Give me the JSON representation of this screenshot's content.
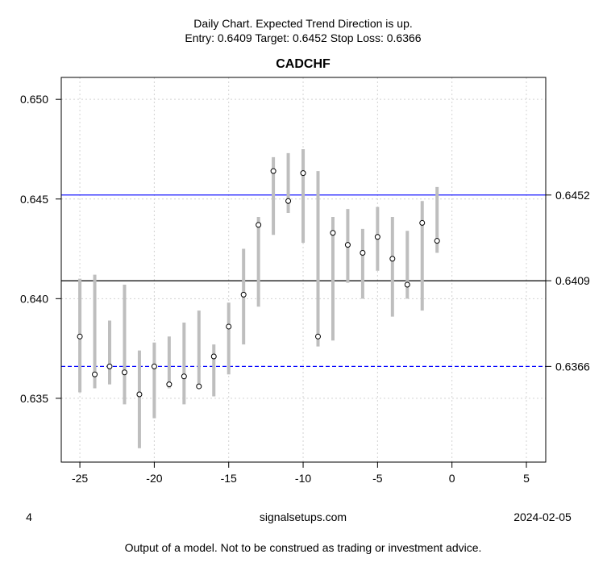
{
  "header": {
    "line1": "Daily Chart. Expected Trend Direction is up.",
    "line2": "Entry: 0.6409 Target: 0.6452 Stop Loss: 0.6366"
  },
  "footer": {
    "left": "4",
    "center": "signalsetups.com",
    "right": "2024-02-05",
    "disclaimer": "Output of a model. Not to be construed as trading or investment advice."
  },
  "chart_data": {
    "type": "scatter",
    "title": "CADCHF",
    "xlabel": "",
    "ylabel": "",
    "xlim": [
      -26.25,
      6.3
    ],
    "ylim": [
      0.6318,
      0.6511
    ],
    "grid": true,
    "x_ticks": [
      "-25",
      "-20",
      "-15",
      "-10",
      "-5",
      "0",
      "5"
    ],
    "x_tick_values": [
      -25,
      -20,
      -15,
      -10,
      -5,
      0,
      5
    ],
    "y_ticks": [
      "0.635",
      "0.640",
      "0.645",
      "0.650"
    ],
    "y_tick_values": [
      0.635,
      0.64,
      0.645,
      0.65
    ],
    "levels": [
      {
        "label": "0.6452",
        "value": 0.6452,
        "color": "#0000ff",
        "style": "solid"
      },
      {
        "label": "0.6409",
        "value": 0.6409,
        "color": "#000000",
        "style": "solid"
      },
      {
        "label": "0.6366",
        "value": 0.6366,
        "color": "#0000ff",
        "style": "dashed"
      }
    ],
    "range_color": "#bebebe",
    "x": [
      -25,
      -24,
      -23,
      -22,
      -21,
      -20,
      -19,
      -18,
      -17,
      -16,
      -15,
      -14,
      -13,
      -12,
      -11,
      -10,
      -9,
      -8,
      -7,
      -6,
      -5,
      -4,
      -3,
      -2,
      -1
    ],
    "close": [
      0.6381,
      0.6362,
      0.6366,
      0.6363,
      0.6352,
      0.6366,
      0.6357,
      0.6361,
      0.6356,
      0.6371,
      0.6386,
      0.6402,
      0.6437,
      0.6464,
      0.6449,
      0.6463,
      0.6381,
      0.6433,
      0.6427,
      0.6423,
      0.6431,
      0.642,
      0.6407,
      0.6438,
      0.6429
    ],
    "high": [
      0.641,
      0.6412,
      0.6389,
      0.6407,
      0.6374,
      0.6378,
      0.6381,
      0.6388,
      0.6394,
      0.6377,
      0.6398,
      0.6425,
      0.6441,
      0.6471,
      0.6473,
      0.6475,
      0.6464,
      0.6441,
      0.6445,
      0.6435,
      0.6446,
      0.6441,
      0.6434,
      0.6449,
      0.6456
    ],
    "low": [
      0.6353,
      0.6355,
      0.6357,
      0.6347,
      0.6325,
      0.634,
      0.6355,
      0.6347,
      0.6355,
      0.6351,
      0.6362,
      0.6377,
      0.6396,
      0.6432,
      0.6443,
      0.6428,
      0.6376,
      0.6379,
      0.6408,
      0.64,
      0.6414,
      0.6391,
      0.64,
      0.6394,
      0.6423
    ]
  }
}
